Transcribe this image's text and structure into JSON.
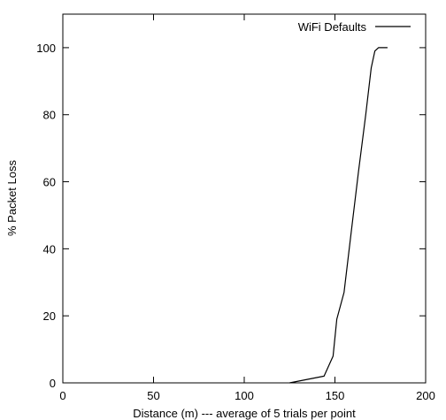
{
  "chart_data": {
    "type": "line",
    "title": "",
    "xlabel": "Distance (m) --- average of 5 trials per point",
    "ylabel": "% Packet Loss",
    "xlim": [
      0,
      200
    ],
    "ylim": [
      0,
      110
    ],
    "xticks": [
      0,
      50,
      100,
      150,
      200
    ],
    "yticks": [
      0,
      20,
      40,
      60,
      80,
      100
    ],
    "grid": false,
    "legend_position": "top-right",
    "series": [
      {
        "name": "WiFi Defaults",
        "color": "#000000",
        "x": [
          125,
          144,
          149,
          151,
          155,
          159,
          163,
          167,
          170,
          172,
          174,
          175,
          176,
          179
        ],
        "y": [
          0,
          2,
          8,
          19,
          27,
          45,
          63,
          80,
          94,
          99,
          100,
          100,
          100,
          100
        ]
      }
    ]
  }
}
